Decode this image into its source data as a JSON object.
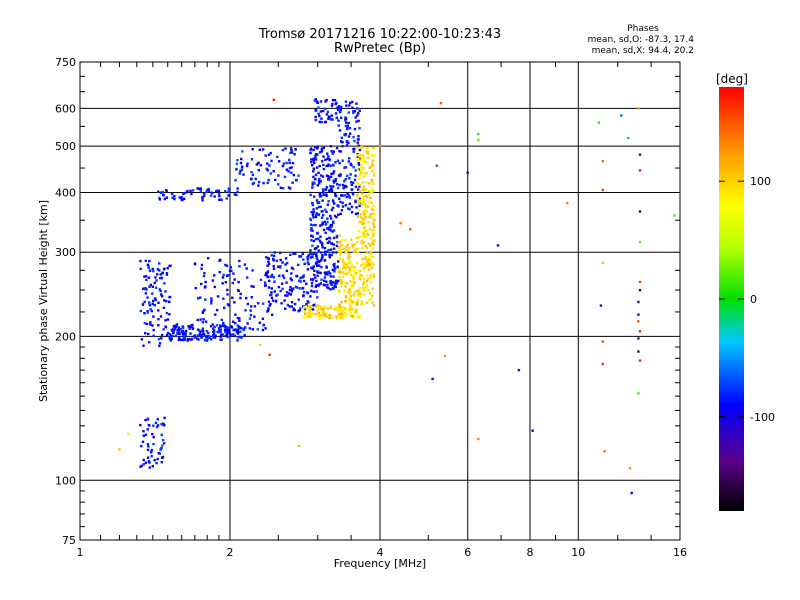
{
  "chart_data": {
    "type": "scatter",
    "title": "Tromsø 20171216 10:22:00-10:23:43",
    "subtitle": "RwPretec (Bp)",
    "stats": {
      "heading": "Phases",
      "line1": "mean, sd,O:  -87.3,  17.4",
      "line2": "mean, sd,X:  94.4,  20.2"
    },
    "xlabel": "Frequency [MHz]",
    "ylabel": "Stationary phase Virtual Height [km]",
    "x_scale": "log",
    "y_scale": "log",
    "xlim": [
      1,
      16
    ],
    "ylim": [
      75,
      750
    ],
    "x_ticks": [
      1,
      2,
      4,
      6,
      8,
      10,
      16
    ],
    "x_tick_labels": [
      "1",
      "2",
      "4",
      "6",
      "8",
      "10",
      "16"
    ],
    "y_ticks": [
      75,
      100,
      200,
      300,
      400,
      500,
      600,
      750
    ],
    "y_tick_labels": [
      "75",
      "100",
      "200",
      "300",
      "400",
      "500",
      "600",
      "750"
    ],
    "grid_x": [
      2,
      4,
      6,
      8,
      10
    ],
    "grid_y": [
      100,
      200,
      300,
      400,
      500,
      600
    ],
    "grid": true,
    "colorbar": {
      "label": "[deg]",
      "range": [
        -180,
        180
      ],
      "ticks": [
        100,
        0,
        -100
      ],
      "tick_labels": [
        "100",
        "0",
        "-100"
      ]
    },
    "series": [
      {
        "mode": "O",
        "mean_phase": -87.3,
        "sd_phase": 17.4,
        "segments": [
          {
            "x": [
              1.32,
              1.48
            ],
            "y": [
              106,
              137
            ],
            "n": 55
          },
          {
            "x": [
              1.32,
              1.52
            ],
            "y": [
              190,
              290
            ],
            "n": 110
          },
          {
            "x": [
              1.52,
              2.15
            ],
            "y": [
              196,
              212
            ],
            "n": 170
          },
          {
            "x": [
              1.7,
              2.45
            ],
            "y": [
              205,
              292
            ],
            "n": 120
          },
          {
            "x": [
              1.4,
              2.1
            ],
            "y": [
              385,
              408
            ],
            "n": 65
          },
          {
            "x": [
              2.05,
              2.75
            ],
            "y": [
              405,
              495
            ],
            "n": 80
          },
          {
            "x": [
              2.35,
              3.0
            ],
            "y": [
              225,
              300
            ],
            "n": 150
          },
          {
            "x": [
              2.9,
              3.3
            ],
            "y": [
              250,
              500
            ],
            "n": 320
          },
          {
            "x": [
              3.3,
              3.65
            ],
            "y": [
              360,
              620
            ],
            "n": 140
          },
          {
            "x": [
              2.95,
              3.3
            ],
            "y": [
              560,
              630
            ],
            "n": 45
          }
        ]
      },
      {
        "mode": "X",
        "mean_phase": 94.4,
        "sd_phase": 20.2,
        "segments": [
          {
            "x": [
              2.8,
              3.65
            ],
            "y": [
              218,
              232
            ],
            "n": 120
          },
          {
            "x": [
              3.3,
              3.9
            ],
            "y": [
              232,
              330
            ],
            "n": 240
          },
          {
            "x": [
              3.6,
              3.9
            ],
            "y": [
              330,
              500
            ],
            "n": 140
          }
        ]
      }
    ],
    "scattered_points": [
      {
        "x": 2.45,
        "y": 625,
        "phase": 175
      },
      {
        "x": 5.3,
        "y": 615,
        "phase": 150
      },
      {
        "x": 6.3,
        "y": 530,
        "phase": 10
      },
      {
        "x": 6.3,
        "y": 515,
        "phase": 20
      },
      {
        "x": 5.2,
        "y": 455,
        "phase": -60
      },
      {
        "x": 6.0,
        "y": 440,
        "phase": -100
      },
      {
        "x": 9.5,
        "y": 380,
        "phase": 130
      },
      {
        "x": 6.9,
        "y": 310,
        "phase": -110
      },
      {
        "x": 5.4,
        "y": 182,
        "phase": 130
      },
      {
        "x": 5.1,
        "y": 163,
        "phase": -120
      },
      {
        "x": 7.6,
        "y": 170,
        "phase": -120
      },
      {
        "x": 8.1,
        "y": 127,
        "phase": -110
      },
      {
        "x": 6.3,
        "y": 122,
        "phase": 130
      },
      {
        "x": 2.3,
        "y": 192,
        "phase": 40
      },
      {
        "x": 2.4,
        "y": 183,
        "phase": 170
      },
      {
        "x": 2.75,
        "y": 118,
        "phase": 110
      },
      {
        "x": 1.2,
        "y": 116,
        "phase": 110
      },
      {
        "x": 1.25,
        "y": 125,
        "phase": 60
      },
      {
        "x": 4.4,
        "y": 345,
        "phase": 140
      },
      {
        "x": 4.6,
        "y": 335,
        "phase": 150
      },
      {
        "x": 4.0,
        "y": 500,
        "phase": 130
      },
      {
        "x": 11.0,
        "y": 560,
        "phase": 10
      },
      {
        "x": 11.2,
        "y": 465,
        "phase": 140
      },
      {
        "x": 11.2,
        "y": 405,
        "phase": 160
      },
      {
        "x": 11.2,
        "y": 285,
        "phase": 110
      },
      {
        "x": 11.2,
        "y": 195,
        "phase": 150
      },
      {
        "x": 11.1,
        "y": 232,
        "phase": -130
      },
      {
        "x": 11.2,
        "y": 175,
        "phase": 160
      },
      {
        "x": 11.3,
        "y": 115,
        "phase": 140
      },
      {
        "x": 12.2,
        "y": 580,
        "phase": -60
      },
      {
        "x": 12.6,
        "y": 520,
        "phase": -10
      },
      {
        "x": 13.2,
        "y": 600,
        "phase": 120
      },
      {
        "x": 13.3,
        "y": 480,
        "phase": -140
      },
      {
        "x": 13.3,
        "y": 445,
        "phase": 170
      },
      {
        "x": 13.3,
        "y": 365,
        "phase": -150
      },
      {
        "x": 13.3,
        "y": 315,
        "phase": 20
      },
      {
        "x": 13.3,
        "y": 260,
        "phase": 160
      },
      {
        "x": 13.3,
        "y": 250,
        "phase": -150
      },
      {
        "x": 13.2,
        "y": 236,
        "phase": -140
      },
      {
        "x": 13.2,
        "y": 222,
        "phase": -120
      },
      {
        "x": 13.2,
        "y": 215,
        "phase": 150
      },
      {
        "x": 13.3,
        "y": 205,
        "phase": 170
      },
      {
        "x": 13.2,
        "y": 198,
        "phase": -130
      },
      {
        "x": 13.2,
        "y": 186,
        "phase": -150
      },
      {
        "x": 13.3,
        "y": 178,
        "phase": 170
      },
      {
        "x": 13.2,
        "y": 152,
        "phase": 20
      },
      {
        "x": 12.7,
        "y": 106,
        "phase": 130
      },
      {
        "x": 12.8,
        "y": 94,
        "phase": -90
      },
      {
        "x": 15.6,
        "y": 358,
        "phase": 20
      }
    ]
  }
}
